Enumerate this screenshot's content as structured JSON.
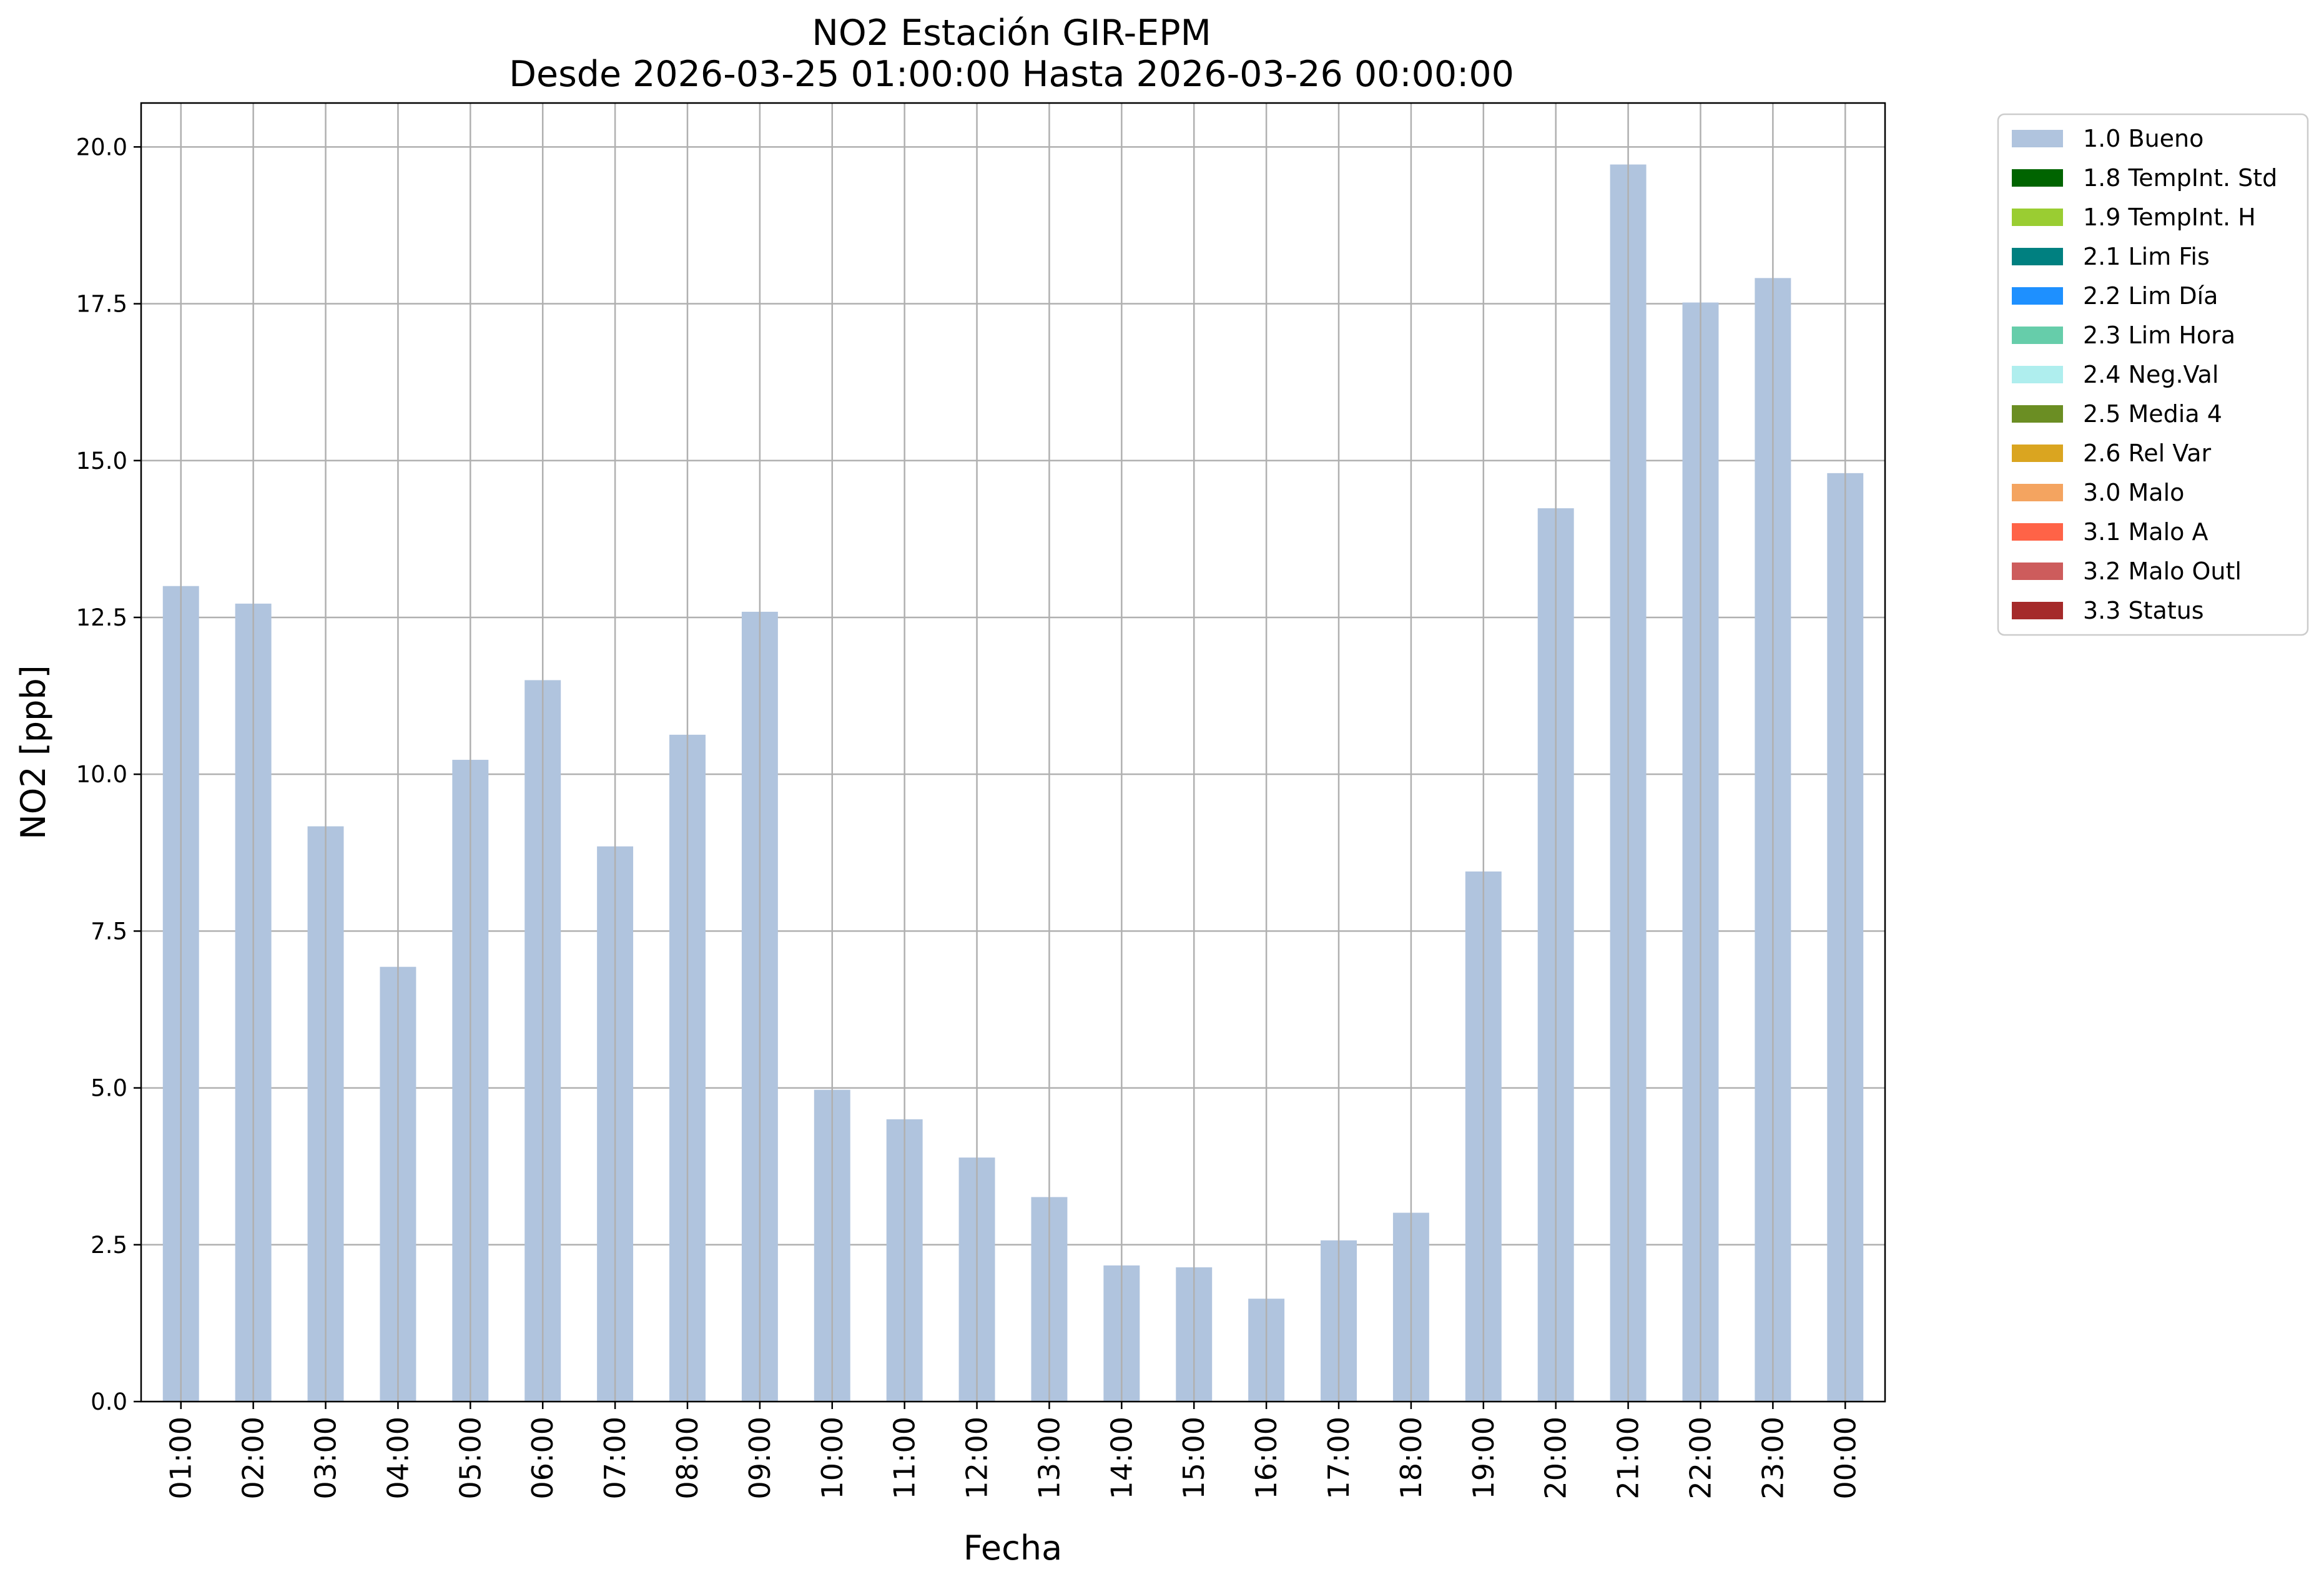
{
  "chart_data": {
    "type": "bar",
    "title": "NO2 Estación GIR-EPM",
    "subtitle": "Desde 2026-03-25 01:00:00 Hasta 2026-03-26 00:00:00",
    "xlabel": "Fecha",
    "ylabel": "NO2 [ppb]",
    "ylim": [
      0,
      20.7
    ],
    "yticks": [
      "0.0",
      "2.5",
      "5.0",
      "7.5",
      "10.0",
      "12.5",
      "15.0",
      "17.5",
      "20.0"
    ],
    "grid": true,
    "legend_position": "outside-top-right",
    "categories": [
      "01:00",
      "02:00",
      "03:00",
      "04:00",
      "05:00",
      "06:00",
      "07:00",
      "08:00",
      "09:00",
      "10:00",
      "11:00",
      "12:00",
      "13:00",
      "14:00",
      "15:00",
      "16:00",
      "17:00",
      "18:00",
      "19:00",
      "20:00",
      "21:00",
      "22:00",
      "23:00",
      "00:00"
    ],
    "series": [
      {
        "name": "1.0 Bueno",
        "color": "#b0c4de",
        "values": [
          13.0,
          12.72,
          9.17,
          6.93,
          10.23,
          11.5,
          8.85,
          10.63,
          12.59,
          4.97,
          4.5,
          3.89,
          3.26,
          2.17,
          2.14,
          1.64,
          2.57,
          3.01,
          8.45,
          14.24,
          19.72,
          17.52,
          17.91,
          14.8
        ]
      }
    ],
    "legend": [
      {
        "label": "1.0 Bueno",
        "color": "#b0c4de"
      },
      {
        "label": "1.8 TempInt. Std",
        "color": "#006400"
      },
      {
        "label": "1.9 TempInt. H",
        "color": "#9acd32"
      },
      {
        "label": "2.1 Lim Fis",
        "color": "#008080"
      },
      {
        "label": "2.2 Lim Día",
        "color": "#1e90ff"
      },
      {
        "label": "2.3 Lim Hora",
        "color": "#66cdaa"
      },
      {
        "label": "2.4 Neg.Val",
        "color": "#afeeee"
      },
      {
        "label": "2.5 Media 4",
        "color": "#6b8e23"
      },
      {
        "label": "2.6 Rel Var",
        "color": "#daa520"
      },
      {
        "label": "3.0 Malo",
        "color": "#f4a460"
      },
      {
        "label": "3.1 Malo A",
        "color": "#ff6347"
      },
      {
        "label": "3.2 Malo Outl",
        "color": "#cd5c5c"
      },
      {
        "label": "3.3 Status",
        "color": "#a52a2a"
      }
    ]
  }
}
